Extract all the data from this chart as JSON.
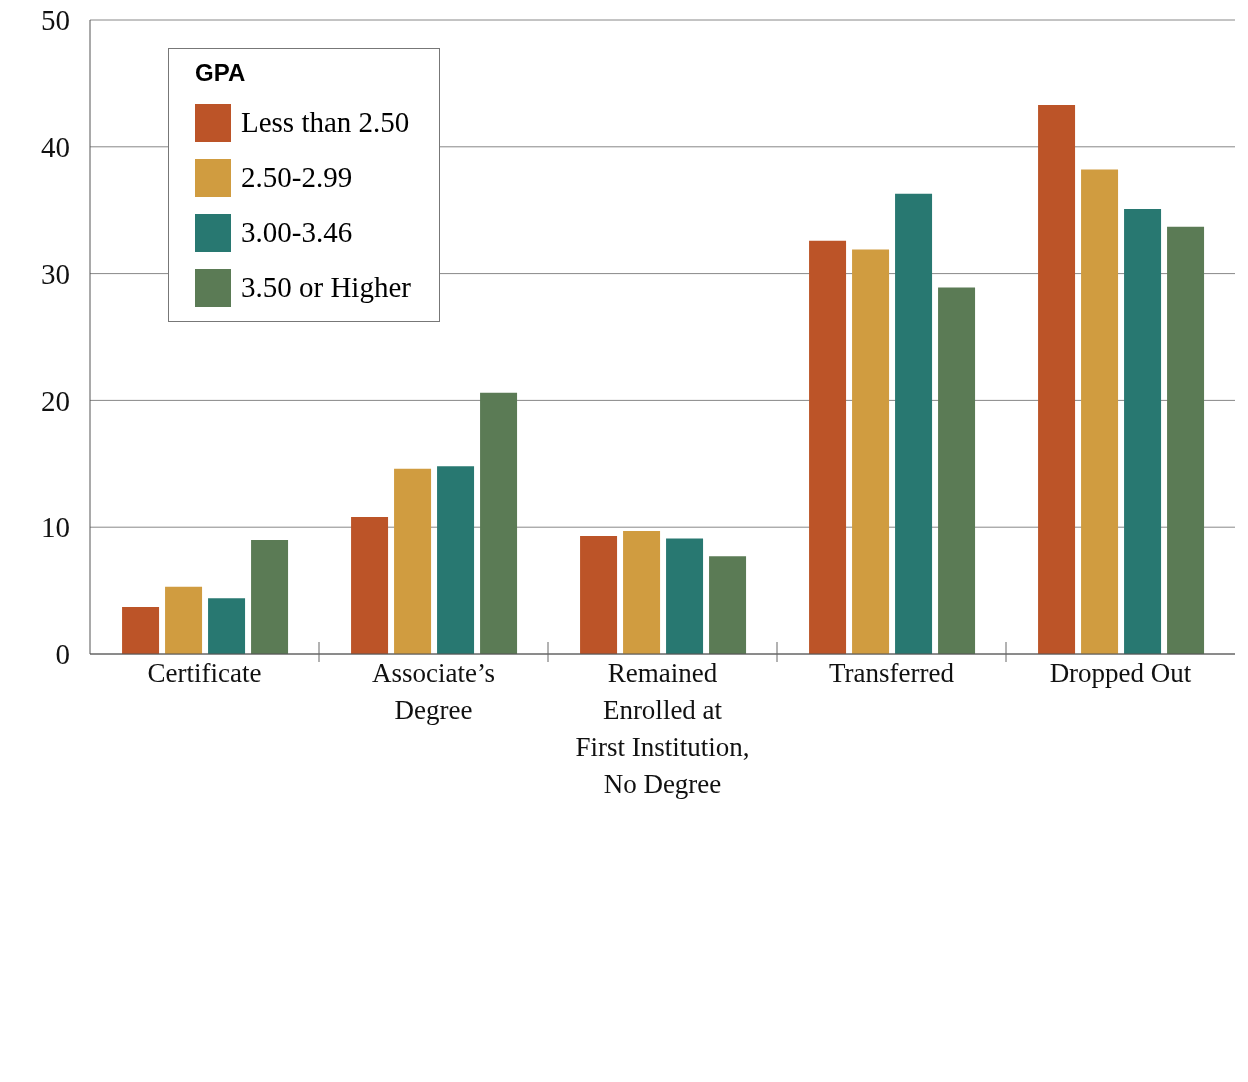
{
  "chart_data": {
    "type": "bar",
    "categories": [
      "Certificate",
      "Associate’s\nDegree",
      "Remained\nEnrolled at\nFirst Institution,\nNo Degree",
      "Transferred",
      "Dropped Out"
    ],
    "series": [
      {
        "name": "Less than 2.50",
        "color": "#bc5428",
        "values": [
          3.7,
          10.8,
          9.3,
          32.6,
          43.3
        ]
      },
      {
        "name": "2.50-2.99",
        "color": "#d09c40",
        "values": [
          5.3,
          14.6,
          9.7,
          31.9,
          38.2
        ]
      },
      {
        "name": "3.00-3.46",
        "color": "#287871",
        "values": [
          4.4,
          14.8,
          9.1,
          36.3,
          35.1
        ]
      },
      {
        "name": "3.50 or Higher",
        "color": "#5b7b55",
        "values": [
          9.0,
          20.6,
          7.7,
          28.9,
          33.7
        ]
      }
    ],
    "legend_title": "GPA",
    "legend": "top left",
    "ylim": [
      0,
      50
    ],
    "yticks": [
      0,
      10,
      20,
      30,
      40,
      50
    ],
    "grid": "y"
  }
}
